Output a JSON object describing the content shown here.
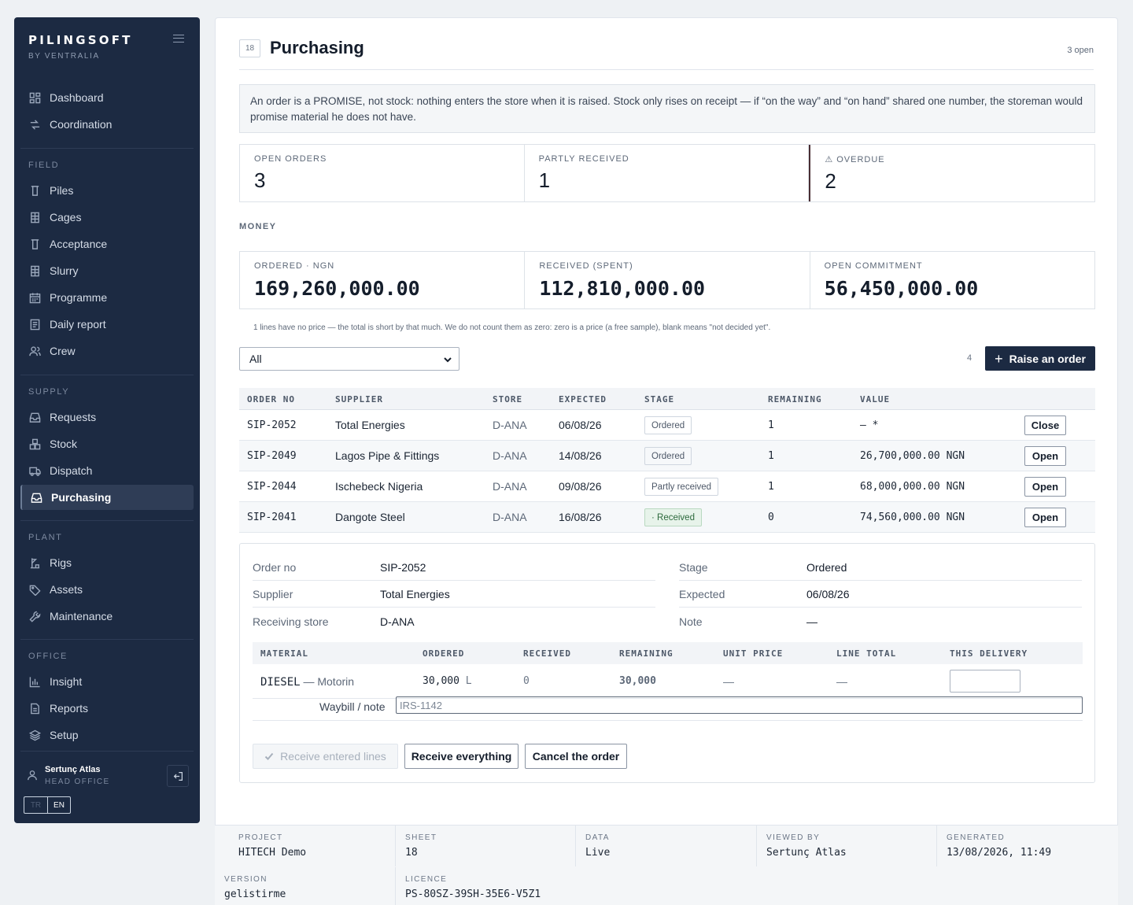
{
  "brand": {
    "name": "PILINGSOFT",
    "sub": "BY VENTRALIA"
  },
  "nav": {
    "top": [
      {
        "label": "Dashboard",
        "icon": "dashboard-icon"
      },
      {
        "label": "Coordination",
        "icon": "coordination-icon"
      }
    ],
    "field_title": "FIELD",
    "field": [
      "Piles",
      "Cages",
      "Acceptance",
      "Slurry",
      "Programme",
      "Daily report",
      "Crew"
    ],
    "supply_title": "SUPPLY",
    "supply": [
      "Requests",
      "Stock",
      "Dispatch",
      "Purchasing"
    ],
    "plant_title": "PLANT",
    "plant": [
      "Rigs",
      "Assets",
      "Maintenance"
    ],
    "office_title": "OFFICE",
    "office": [
      "Insight",
      "Reports",
      "Setup"
    ],
    "active": "Purchasing"
  },
  "user": {
    "name": "Sertunç Atlas",
    "role": "HEAD OFFICE"
  },
  "lang": {
    "off": "TR",
    "on": "EN"
  },
  "page": {
    "sheet": "18",
    "title": "Purchasing",
    "open_count": "3 open",
    "note": "An order is a PROMISE, not stock: nothing enters the store when it is raised. Stock only rises on receipt — if “on the way” and “on hand” shared one number, the storeman would promise material he does not have."
  },
  "stats": {
    "open_orders_label": "OPEN ORDERS",
    "open_orders": "3",
    "partly_label": "PARTLY RECEIVED",
    "partly": "1",
    "overdue_label": "OVERDUE",
    "overdue": "2",
    "overdue_icon": "warning-icon"
  },
  "money": {
    "section": "MONEY",
    "ordered_label": "ORDERED · NGN",
    "ordered": "169,260,000.00",
    "received_label": "RECEIVED (SPENT)",
    "received": "112,810,000.00",
    "open_label": "OPEN COMMITMENT",
    "open": "56,450,000.00",
    "footnote": "1 lines have no price — the total is short by that much. We do not count them as zero: zero is a price (a free sample), blank means \"not decided yet\"."
  },
  "toolbar": {
    "filter_value": "All",
    "row_count": "4",
    "raise_label": "Raise an order"
  },
  "orders": {
    "headers": [
      "ORDER NO",
      "SUPPLIER",
      "STORE",
      "EXPECTED",
      "STAGE",
      "REMAINING",
      "VALUE"
    ],
    "rows": [
      {
        "no": "SIP-2052",
        "supplier": "Total Energies",
        "store": "D-ANA",
        "expected": "06/08/26",
        "stage": "Ordered",
        "remaining": "1",
        "value": "— *",
        "action": "Close"
      },
      {
        "no": "SIP-2049",
        "supplier": "Lagos Pipe & Fittings",
        "store": "D-ANA",
        "expected": "14/08/26",
        "stage": "Ordered",
        "remaining": "1",
        "value": "26,700,000.00 NGN",
        "action": "Open"
      },
      {
        "no": "SIP-2044",
        "supplier": "Ischebeck Nigeria",
        "store": "D-ANA",
        "expected": "09/08/26",
        "stage": "Partly received",
        "remaining": "1",
        "value": "68,000,000.00 NGN",
        "action": "Open"
      },
      {
        "no": "SIP-2041",
        "supplier": "Dangote Steel",
        "store": "D-ANA",
        "expected": "16/08/26",
        "stage": "· Received",
        "remaining": "0",
        "value": "74,560,000.00 NGN",
        "action": "Open"
      }
    ]
  },
  "detail": {
    "order_no_label": "Order no",
    "order_no": "SIP-2052",
    "supplier_label": "Supplier",
    "supplier": "Total Energies",
    "store_label": "Receiving store",
    "store": "D-ANA",
    "stage_label": "Stage",
    "stage": "Ordered",
    "expected_label": "Expected",
    "expected": "06/08/26",
    "note_label": "Note",
    "note": "—",
    "line_headers": [
      "MATERIAL",
      "ORDERED",
      "RECEIVED",
      "REMAINING",
      "UNIT PRICE",
      "LINE TOTAL",
      "THIS DELIVERY"
    ],
    "line": {
      "material": "DIESEL",
      "material_sub": "— Motorin",
      "ordered": "30,000",
      "unit": "L",
      "received": "0",
      "remaining": "30,000",
      "unit_price": "—",
      "line_total": "—",
      "delivery": ""
    },
    "waybill_label": "Waybill / note",
    "waybill_placeholder": "IRS-1142",
    "receive_lines_label": "Receive entered lines",
    "receive_all_label": "Receive everything",
    "cancel_label": "Cancel the order"
  },
  "footer": {
    "project_label": "PROJECT",
    "project": "HITECH Demo",
    "sheet_label": "SHEET",
    "sheet": "18",
    "data_label": "DATA",
    "data": "Live",
    "viewed_label": "VIEWED BY",
    "viewed": "Sertunç Atlas",
    "generated_label": "GENERATED",
    "generated": "13/08/2026, 11:49",
    "version_label": "VERSION",
    "version": "gelistirme",
    "licence_label": "LICENCE",
    "licence": "PS-80SZ-39SH-35E6-V5Z1"
  }
}
